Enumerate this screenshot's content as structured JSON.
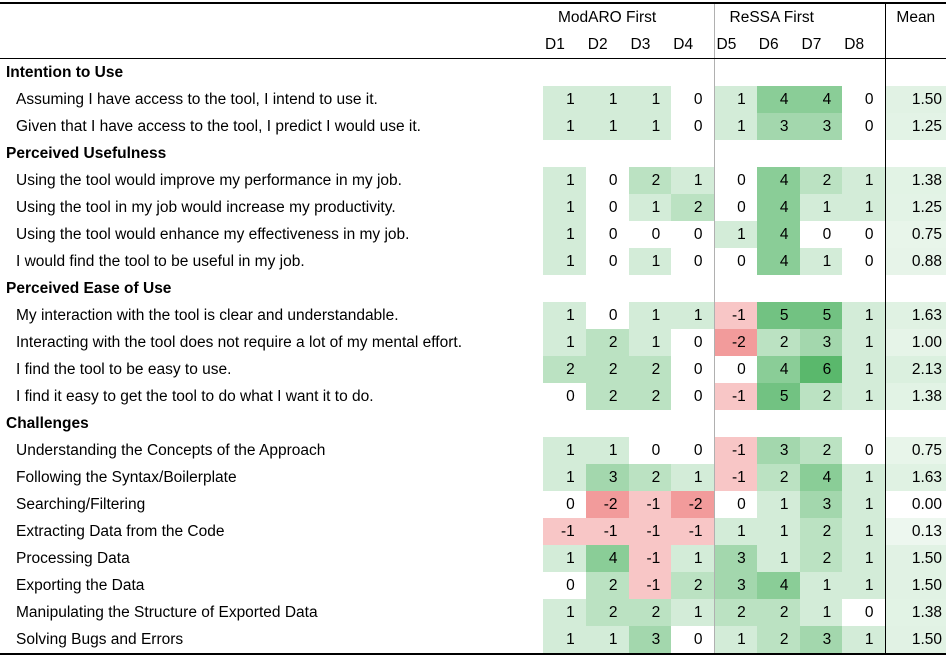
{
  "header": {
    "group1": "ModARO First",
    "group2": "ReSSA First",
    "mean": "Mean",
    "columns": [
      "D1",
      "D2",
      "D3",
      "D4",
      "D5",
      "D6",
      "D7",
      "D8"
    ]
  },
  "colors": {
    "positive": "#5ab86c",
    "negative": "#f08a8a",
    "neutral": "#ffffff"
  },
  "sections": [
    {
      "title": "Intention to Use",
      "items": [
        {
          "label": "Assuming I have access to the tool, I intend to use it.",
          "values": [
            1,
            1,
            1,
            0,
            1,
            4,
            4,
            0
          ],
          "mean": "1.50"
        },
        {
          "label": "Given that I have access to the tool, I predict I would use it.",
          "values": [
            1,
            1,
            1,
            0,
            1,
            3,
            3,
            0
          ],
          "mean": "1.25"
        }
      ]
    },
    {
      "title": "Perceived Usefulness",
      "items": [
        {
          "label": "Using the tool would improve my performance in my job.",
          "values": [
            1,
            0,
            2,
            1,
            0,
            4,
            2,
            1
          ],
          "mean": "1.38"
        },
        {
          "label": "Using the tool in my job would increase my productivity.",
          "values": [
            1,
            0,
            1,
            2,
            0,
            4,
            1,
            1
          ],
          "mean": "1.25"
        },
        {
          "label": "Using the tool would enhance my effectiveness in my job.",
          "values": [
            1,
            0,
            0,
            0,
            1,
            4,
            0,
            0
          ],
          "mean": "0.75"
        },
        {
          "label": "I would find the tool to be useful in my job.",
          "values": [
            1,
            0,
            1,
            0,
            0,
            4,
            1,
            0
          ],
          "mean": "0.88"
        }
      ]
    },
    {
      "title": "Perceived Ease of Use",
      "items": [
        {
          "label": "My interaction with the tool is clear and understandable.",
          "values": [
            1,
            0,
            1,
            1,
            -1,
            5,
            5,
            1
          ],
          "mean": "1.63"
        },
        {
          "label": "Interacting with the tool does not require a lot of my mental effort.",
          "values": [
            1,
            2,
            1,
            0,
            -2,
            2,
            3,
            1
          ],
          "mean": "1.00"
        },
        {
          "label": "I find the tool to be easy to use.",
          "values": [
            2,
            2,
            2,
            0,
            0,
            4,
            6,
            1
          ],
          "mean": "2.13"
        },
        {
          "label": "I find it easy to get the tool to do what I want it to do.",
          "values": [
            0,
            2,
            2,
            0,
            -1,
            5,
            2,
            1
          ],
          "mean": "1.38"
        }
      ]
    },
    {
      "title": "Challenges",
      "items": [
        {
          "label": "Understanding the Concepts of the Approach",
          "values": [
            1,
            1,
            0,
            0,
            -1,
            3,
            2,
            0
          ],
          "mean": "0.75"
        },
        {
          "label": "Following the Syntax/Boilerplate",
          "values": [
            1,
            3,
            2,
            1,
            -1,
            2,
            4,
            1
          ],
          "mean": "1.63"
        },
        {
          "label": "Searching/Filtering",
          "values": [
            0,
            -2,
            -1,
            -2,
            0,
            1,
            3,
            1
          ],
          "mean": "0.00"
        },
        {
          "label": "Extracting Data from the Code",
          "values": [
            -1,
            -1,
            -1,
            -1,
            1,
            1,
            2,
            1
          ],
          "mean": "0.13"
        },
        {
          "label": "Processing Data",
          "values": [
            1,
            4,
            -1,
            1,
            3,
            1,
            2,
            1
          ],
          "mean": "1.50"
        },
        {
          "label": "Exporting the Data",
          "values": [
            0,
            2,
            -1,
            2,
            3,
            4,
            1,
            1
          ],
          "mean": "1.50"
        },
        {
          "label": "Manipulating the Structure of Exported Data",
          "values": [
            1,
            2,
            2,
            1,
            2,
            2,
            1,
            0
          ],
          "mean": "1.38"
        },
        {
          "label": "Solving Bugs and Errors",
          "values": [
            1,
            1,
            3,
            0,
            1,
            2,
            3,
            1
          ],
          "mean": "1.50"
        }
      ]
    }
  ]
}
